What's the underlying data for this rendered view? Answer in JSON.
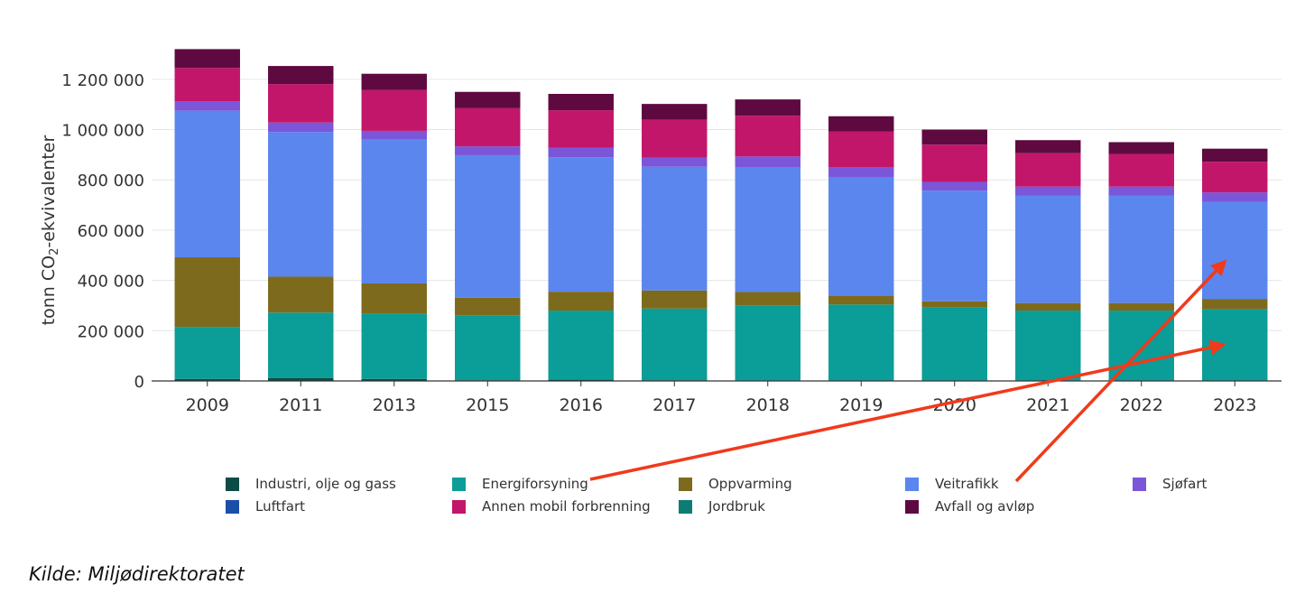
{
  "chart_data": {
    "type": "bar",
    "stacked": true,
    "ylabel_prefix": "tonn CO",
    "ylabel_sub": "2",
    "ylabel_suffix": "-ekvivalenter",
    "ylim": [
      0,
      1300000
    ],
    "yticks": [
      0,
      200000,
      400000,
      600000,
      800000,
      1000000,
      1200000
    ],
    "ytick_labels": [
      "0",
      "200 000",
      "400 000",
      "600 000",
      "800 000",
      "1 000 000",
      "1 200 000"
    ],
    "categories": [
      "2009",
      "2011",
      "2013",
      "2015",
      "2016",
      "2017",
      "2018",
      "2019",
      "2020",
      "2021",
      "2022",
      "2023"
    ],
    "series": [
      {
        "name": "Industri, olje og gass",
        "color": "#0b4d45",
        "values": [
          8000,
          12000,
          8000,
          3000,
          5000,
          3000,
          2000,
          2000,
          2000,
          2000,
          2000,
          2000
        ]
      },
      {
        "name": "Energiforsyning",
        "color": "#0b9d97",
        "values": [
          207000,
          260000,
          260000,
          258000,
          275000,
          285000,
          297000,
          302000,
          290000,
          278000,
          278000,
          283000
        ]
      },
      {
        "name": "Oppvarming",
        "color": "#7d6a1c",
        "values": [
          277000,
          143000,
          120000,
          70000,
          75000,
          72000,
          55000,
          35000,
          25000,
          30000,
          30000,
          40000
        ]
      },
      {
        "name": "Veitrafikk",
        "color": "#5b86ee",
        "values": [
          583000,
          575000,
          572000,
          567000,
          535000,
          492000,
          497000,
          470000,
          440000,
          428000,
          428000,
          388000
        ]
      },
      {
        "name": "Sjøfart",
        "color": "#7b56d9",
        "values": [
          37000,
          38000,
          35000,
          35000,
          37000,
          37000,
          42000,
          42000,
          35000,
          35000,
          35000,
          37000
        ]
      },
      {
        "name": "Luftfart",
        "color": "#1b4ea8",
        "values": [
          0,
          0,
          0,
          0,
          0,
          0,
          0,
          0,
          0,
          0,
          0,
          0
        ]
      },
      {
        "name": "Annen mobil forbrenning",
        "color": "#c2166a",
        "values": [
          133000,
          153000,
          162000,
          152000,
          150000,
          150000,
          162000,
          142000,
          148000,
          133000,
          130000,
          122000
        ]
      },
      {
        "name": "Jordbruk",
        "color": "#0c7c75",
        "values": [
          0,
          0,
          0,
          0,
          0,
          0,
          0,
          0,
          0,
          0,
          0,
          0
        ]
      },
      {
        "name": "Avfall og avløp",
        "color": "#5e0a40",
        "values": [
          75000,
          72000,
          65000,
          65000,
          65000,
          63000,
          65000,
          60000,
          60000,
          52000,
          47000,
          52000
        ]
      }
    ]
  },
  "legend_rows": [
    [
      "Industri, olje og gass",
      "Energiforsyning",
      "Oppvarming",
      "Veitrafikk",
      "Sjøfart"
    ],
    [
      "Luftfart",
      "Annen mobil forbrenning",
      "Jordbruk",
      "Avfall og avløp"
    ]
  ],
  "annotations": [
    {
      "name": "arrow-energiforsyning",
      "color": "#f03a1c"
    },
    {
      "name": "arrow-veitrafikk",
      "color": "#f03a1c"
    }
  ],
  "source_text": "Kilde: Miljødirektoratet"
}
